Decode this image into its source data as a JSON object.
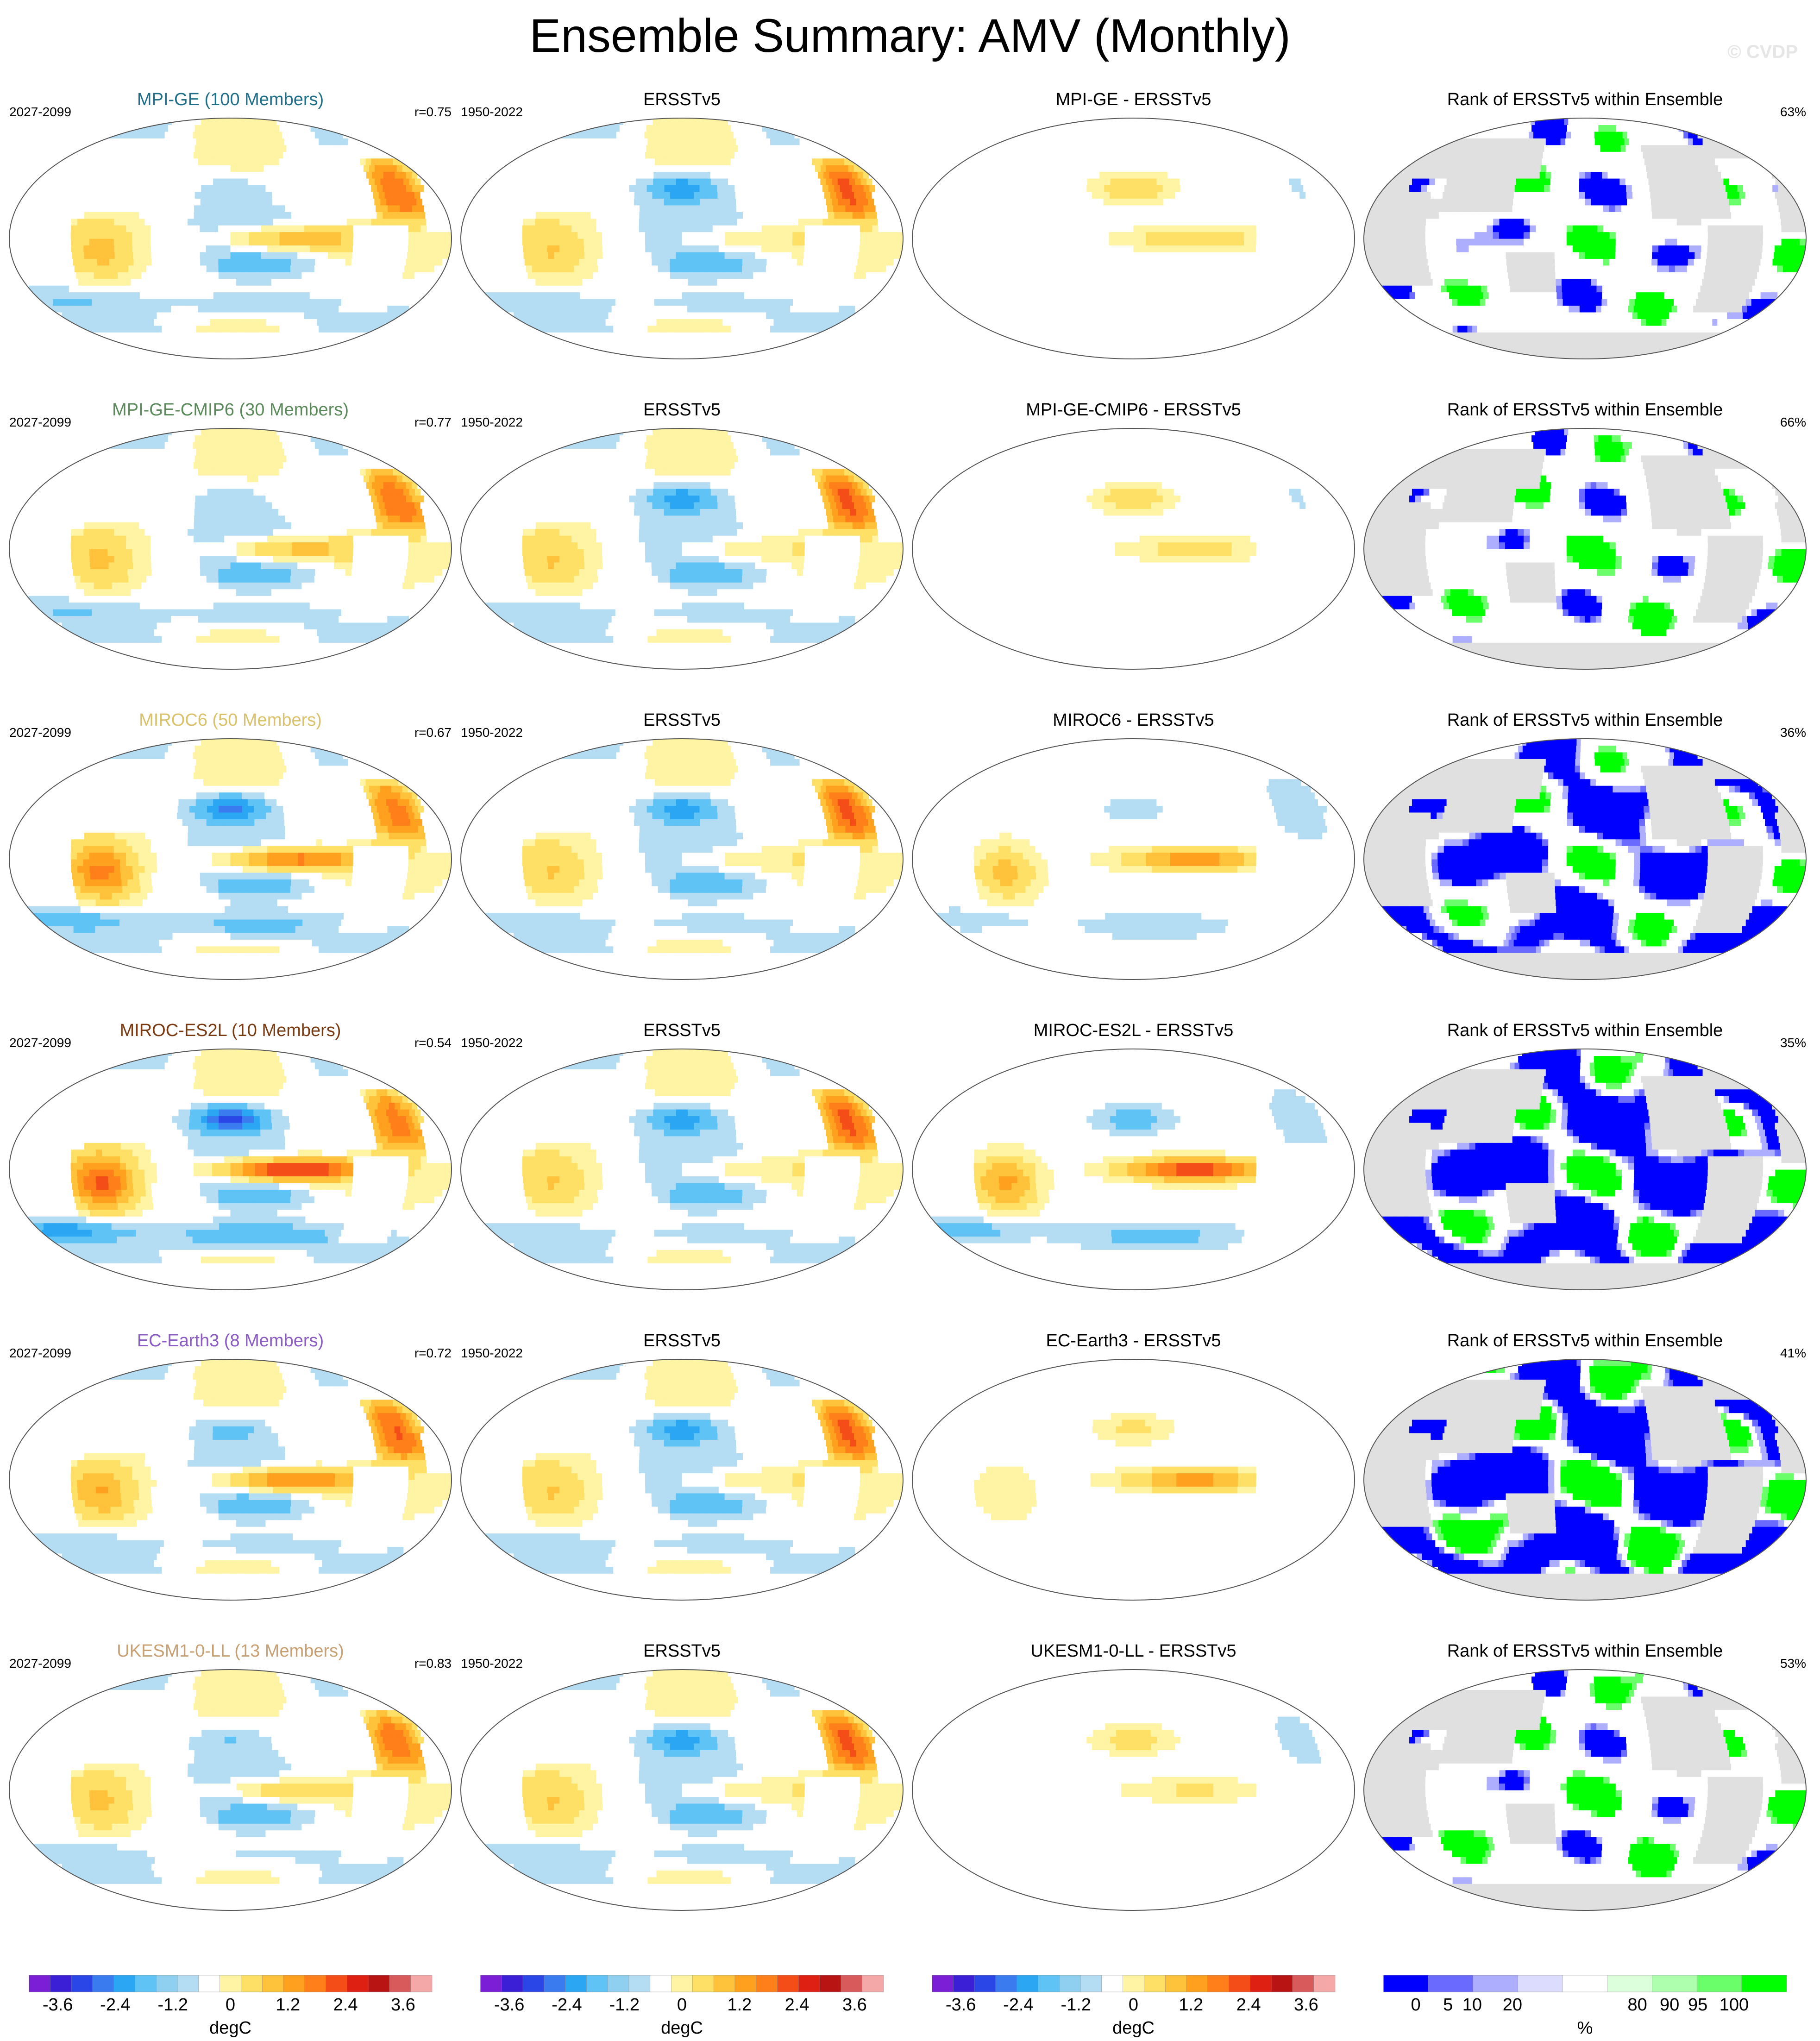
{
  "header": {
    "title": "Ensemble Summary: AMV (Monthly)",
    "watermark": "© CVDP"
  },
  "chart_data": {
    "type": "heatmap",
    "layout": "6 rows x 4 columns of global Robinson-projection maps",
    "colors": {
      "anomaly_scale": [
        "#7b1fd6",
        "#3a1fd6",
        "#2a46e6",
        "#3a7cf0",
        "#2aa6f3",
        "#5fc3f5",
        "#8fd0f0",
        "#b4dcf2",
        "#ffffff",
        "#fff3a4",
        "#ffe066",
        "#ffc23a",
        "#ffa11f",
        "#ff7f1a",
        "#f44d18",
        "#de2012",
        "#b81414",
        "#d85a5a",
        "#f4a8a8"
      ],
      "rank_scale": [
        "#0000ff",
        "#6a6aff",
        "#aeaeff",
        "#dcdcff",
        "#ffffff",
        "#dcffdc",
        "#aeffae",
        "#6aff6a",
        "#00ff00"
      ],
      "land_masked": "#e0e0e0",
      "model_title_colors": {
        "MPI-GE": "#1f6f8b",
        "MPI-GE-CMIP6": "#5a8a5a",
        "MIROC6": "#d9c26a",
        "MIROC-ES2L": "#7a3a12",
        "EC-Earth3": "#8a5cc4",
        "UKESM1-0-LL": "#c9a071"
      }
    },
    "rows": [
      {
        "model": "MPI-GE (100 Members)",
        "model_key": "MPI-GE",
        "model_years": "2027-2099",
        "correlation": "r=0.75",
        "obs_title": "ERSSTv5",
        "obs_years": "1950-2022",
        "diff_title": "MPI-GE - ERSSTv5",
        "rank_title": "Rank of ERSSTv5 within Ensemble",
        "rank_percent": "63%",
        "pattern": {
          "tropical_pacific": 1.8,
          "north_atlantic": 2.8,
          "north_pacific": -0.4,
          "southern_ocean": -0.6,
          "indian_ocean": 1.0,
          "obs_north_pacific": -1.6
        },
        "rank_blue_fraction": 0.22,
        "rank_green_fraction": 0.2
      },
      {
        "model": "MPI-GE-CMIP6 (30 Members)",
        "model_key": "MPI-GE-CMIP6",
        "model_years": "2027-2099",
        "correlation": "r=0.77",
        "obs_title": "ERSSTv5",
        "obs_years": "1950-2022",
        "diff_title": "MPI-GE-CMIP6 - ERSSTv5",
        "rank_title": "Rank of ERSSTv5 within Ensemble",
        "rank_percent": "66%",
        "pattern": {
          "tropical_pacific": 1.6,
          "north_atlantic": 2.8,
          "north_pacific": -0.5,
          "southern_ocean": -0.6,
          "indian_ocean": 0.9,
          "obs_north_pacific": -1.6
        },
        "rank_blue_fraction": 0.2,
        "rank_green_fraction": 0.22
      },
      {
        "model": "MIROC6 (50 Members)",
        "model_key": "MIROC6",
        "model_years": "2027-2099",
        "correlation": "r=0.67",
        "obs_title": "ERSSTv5",
        "obs_years": "1950-2022",
        "diff_title": "MIROC6 - ERSSTv5",
        "rank_title": "Rank of ERSSTv5 within Ensemble",
        "rank_percent": "36%",
        "pattern": {
          "tropical_pacific": 2.9,
          "north_atlantic": 2.5,
          "north_pacific": -2.0,
          "southern_ocean": -1.0,
          "indian_ocean": 2.2,
          "obs_north_pacific": -1.6
        },
        "rank_blue_fraction": 0.45,
        "rank_green_fraction": 0.2
      },
      {
        "model": "MIROC-ES2L (10 Members)",
        "model_key": "MIROC-ES2L",
        "model_years": "2027-2099",
        "correlation": "r=0.54",
        "obs_title": "ERSSTv5",
        "obs_years": "1950-2022",
        "diff_title": "MIROC-ES2L - ERSSTv5",
        "rank_title": "Rank of ERSSTv5 within Ensemble",
        "rank_percent": "35%",
        "pattern": {
          "tropical_pacific": 4.2,
          "north_atlantic": 2.6,
          "north_pacific": -2.6,
          "southern_ocean": -1.4,
          "indian_ocean": 2.8,
          "obs_north_pacific": -1.6
        },
        "rank_blue_fraction": 0.5,
        "rank_green_fraction": 0.25
      },
      {
        "model": "EC-Earth3 (8 Members)",
        "model_key": "EC-Earth3",
        "model_years": "2027-2099",
        "correlation": "r=0.72",
        "obs_title": "ERSSTv5",
        "obs_years": "1950-2022",
        "diff_title": "EC-Earth3 - ERSSTv5",
        "rank_title": "Rank of ERSSTv5 within Ensemble",
        "rank_percent": "41%",
        "pattern": {
          "tropical_pacific": 2.8,
          "north_atlantic": 2.9,
          "north_pacific": -0.8,
          "southern_ocean": -0.5,
          "indian_ocean": 1.4,
          "obs_north_pacific": -1.6
        },
        "rank_blue_fraction": 0.5,
        "rank_green_fraction": 0.3
      },
      {
        "model": "UKESM1-0-LL (13 Members)",
        "model_key": "UKESM1-0-LL",
        "model_years": "2027-2099",
        "correlation": "r=0.83",
        "obs_title": "ERSSTv5",
        "obs_years": "1950-2022",
        "diff_title": "UKESM1-0-LL - ERSSTv5",
        "rank_title": "Rank of ERSSTv5 within Ensemble",
        "rank_percent": "53%",
        "pattern": {
          "tropical_pacific": 1.4,
          "north_atlantic": 2.7,
          "north_pacific": -0.6,
          "southern_ocean": -0.4,
          "indian_ocean": 0.9,
          "obs_north_pacific": -1.6
        },
        "rank_blue_fraction": 0.2,
        "rank_green_fraction": 0.25
      }
    ],
    "colorbars": [
      {
        "unit": "degC",
        "ticks": [
          "-3.6",
          "-2.4",
          "-1.2",
          "0",
          "1.2",
          "2.4",
          "3.6"
        ],
        "range": [
          -4.2,
          4.2
        ]
      },
      {
        "unit": "degC",
        "ticks": [
          "-3.6",
          "-2.4",
          "-1.2",
          "0",
          "1.2",
          "2.4",
          "3.6"
        ],
        "range": [
          -4.2,
          4.2
        ]
      },
      {
        "unit": "degC",
        "ticks": [
          "-3.6",
          "-2.4",
          "-1.2",
          "0",
          "1.2",
          "2.4",
          "3.6"
        ],
        "range": [
          -4.2,
          4.2
        ]
      },
      {
        "unit": "%",
        "ticks": [
          "0",
          "5",
          "10",
          "20",
          "80",
          "90",
          "95",
          "100"
        ],
        "range": [
          0,
          100
        ]
      }
    ]
  }
}
